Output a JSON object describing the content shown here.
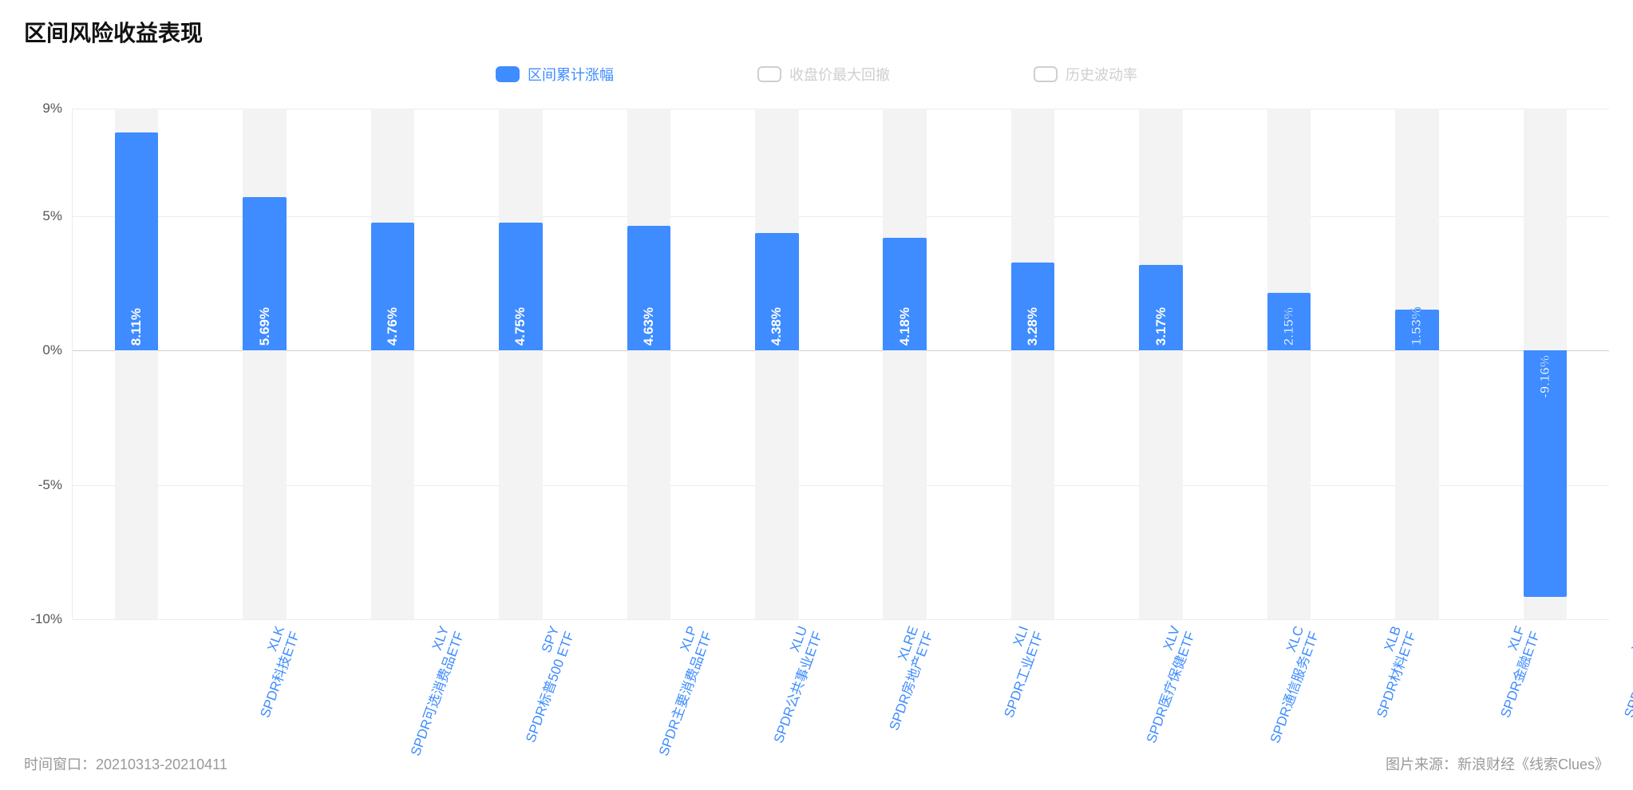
{
  "title": "区间风险收益表现",
  "legend": [
    {
      "label": "区间累计涨幅",
      "color": "#3e8cff",
      "active": true
    },
    {
      "label": "收盘价最大回撤",
      "color": "#cfcfcf",
      "active": false
    },
    {
      "label": "历史波动率",
      "color": "#cfcfcf",
      "active": false
    }
  ],
  "chart": {
    "type": "bar",
    "ymin": -10,
    "ymax": 9,
    "yticks": [
      -10,
      -5,
      0,
      5,
      9
    ],
    "ytick_suffix": "%",
    "axis_label_fontsize": 17,
    "axis_label_color": "#555555",
    "grid_color": "#ececec",
    "zero_line_color": "#d0d0d0",
    "background_color": "#ffffff",
    "bar_bg_color": "#f3f3f3",
    "bar_fg_color": "#3e8cff",
    "value_label_color_inside": "#ffffff",
    "value_label_color_outline": "#3e8cff",
    "value_label_fontsize": 17,
    "x_label_color": "#3e8cff",
    "x_label_fontsize": 17,
    "bar_bg_width_pct": 34,
    "bar_fg_width_pct": 34,
    "categories": [
      {
        "ticker": "XLK",
        "name": "SPDR科技ETF",
        "value": 8.11,
        "value_label": "8.11%"
      },
      {
        "ticker": "XLY",
        "name": "SPDR可选消费品ETF",
        "value": 5.69,
        "value_label": "5.69%"
      },
      {
        "ticker": "SPY",
        "name": "SPDR标普500 ETF",
        "value": 4.76,
        "value_label": "4.76%"
      },
      {
        "ticker": "XLP",
        "name": "SPDR主要消费品ETF",
        "value": 4.75,
        "value_label": "4.75%"
      },
      {
        "ticker": "XLU",
        "name": "SPDR公共事业ETF",
        "value": 4.63,
        "value_label": "4.63%"
      },
      {
        "ticker": "XLRE",
        "name": "SPDR房地产ETF",
        "value": 4.38,
        "value_label": "4.38%"
      },
      {
        "ticker": "XLI",
        "name": "SPDR工业ETF",
        "value": 4.18,
        "value_label": "4.18%"
      },
      {
        "ticker": "XLV",
        "name": "SPDR医疗保健ETF",
        "value": 3.28,
        "value_label": "3.28%"
      },
      {
        "ticker": "XLC",
        "name": "SPDR通信服务ETF",
        "value": 3.17,
        "value_label": "3.17%"
      },
      {
        "ticker": "XLB",
        "name": "SPDR材料ETF",
        "value": 2.15,
        "value_label": "2.15%"
      },
      {
        "ticker": "XLF",
        "name": "SPDR金融ETF",
        "value": 1.53,
        "value_label": "1.53%"
      },
      {
        "ticker": "XLE",
        "name": "SPDR能源ETF",
        "value": -9.16,
        "value_label": "-9.16%"
      }
    ]
  },
  "footer": {
    "left": "时间窗口：20210313-20210411",
    "right": "图片来源：新浪财经《线索Clues》",
    "color": "#999999",
    "fontsize": 18
  }
}
